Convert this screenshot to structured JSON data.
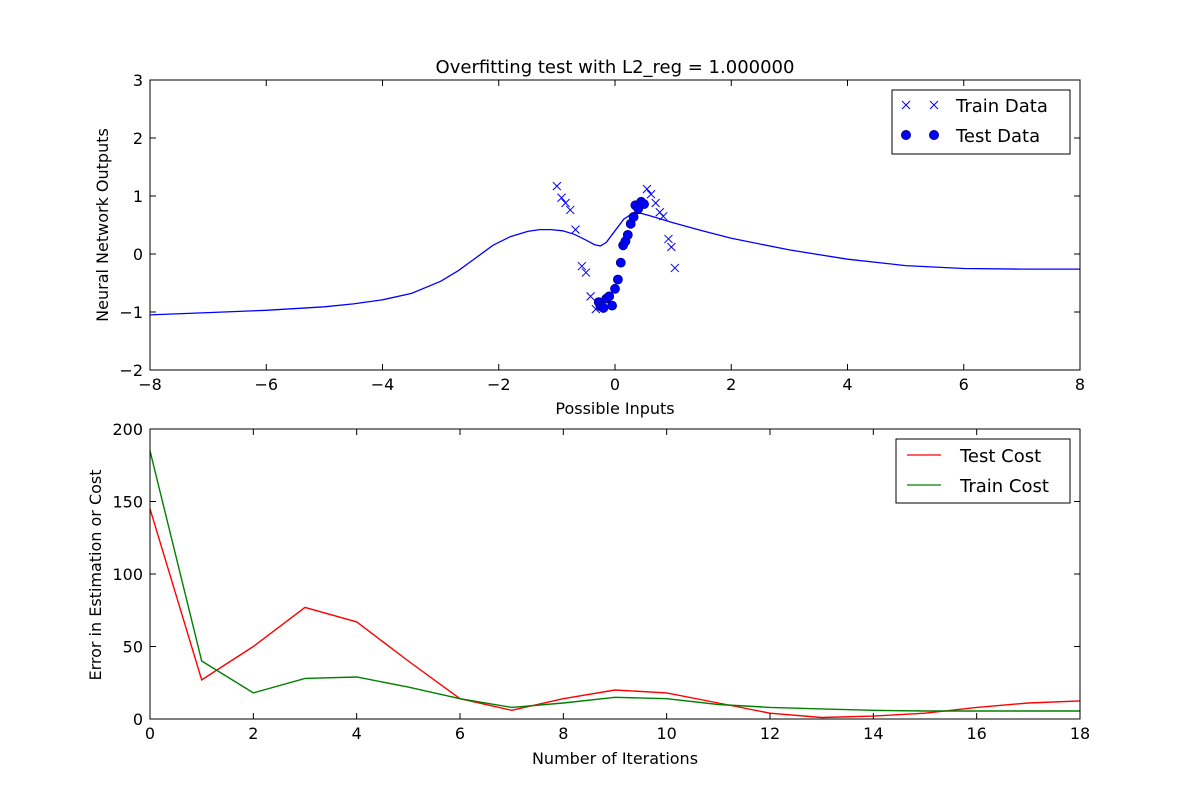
{
  "chart_data": [
    {
      "type": "scatter",
      "title": "Overfitting test with L2_reg = 1.000000",
      "xlabel": "Possible Inputs",
      "ylabel": "Neural Network Outputs",
      "xlim": [
        -8,
        8
      ],
      "ylim": [
        -2,
        3
      ],
      "xticks": [
        -8,
        -6,
        -4,
        -2,
        0,
        2,
        4,
        6,
        8
      ],
      "yticks": [
        -2,
        -1,
        0,
        1,
        2,
        3
      ],
      "xtick_labels": [
        "−8",
        "−6",
        "−4",
        "−2",
        "0",
        "2",
        "4",
        "6",
        "8"
      ],
      "ytick_labels": [
        "−2",
        "−1",
        "0",
        "1",
        "2",
        "3"
      ],
      "grid": false,
      "legend_position": "top-right",
      "legend": [
        {
          "label": "Train Data",
          "marker": "x",
          "color": "#0000ff"
        },
        {
          "label": "Test Data",
          "marker": "o",
          "color": "#0000ff"
        }
      ],
      "series": [
        {
          "name": "Train Data",
          "marker": "x",
          "color": "#0000ff",
          "x": [
            -1.0,
            -0.92,
            -0.85,
            -0.77,
            -0.68,
            -0.57,
            -0.5,
            -0.42,
            -0.33,
            0.55,
            0.62,
            0.7,
            0.77,
            0.83,
            0.92,
            0.97,
            1.03
          ],
          "y": [
            1.17,
            0.97,
            0.88,
            0.76,
            0.42,
            -0.21,
            -0.32,
            -0.73,
            -0.95,
            1.12,
            1.03,
            0.88,
            0.72,
            0.65,
            0.26,
            0.12,
            -0.24
          ]
        },
        {
          "name": "Test Data",
          "marker": "o",
          "color": "#0000ff",
          "x": [
            -0.28,
            -0.25,
            -0.2,
            -0.15,
            -0.1,
            -0.05,
            0.0,
            0.05,
            0.1,
            0.14,
            0.18,
            0.22,
            0.27,
            0.32,
            0.35,
            0.4,
            0.45,
            0.5
          ],
          "y": [
            -0.83,
            -0.9,
            -0.93,
            -0.77,
            -0.73,
            -0.89,
            -0.6,
            -0.44,
            -0.15,
            0.15,
            0.22,
            0.33,
            0.52,
            0.64,
            0.84,
            0.78,
            0.9,
            0.86
          ]
        },
        {
          "name": "",
          "type": "line",
          "color": "#0000ff",
          "x": [
            -8,
            -7,
            -6,
            -5,
            -4.5,
            -4,
            -3.5,
            -3,
            -2.7,
            -2.4,
            -2.1,
            -1.8,
            -1.5,
            -1.3,
            -1.1,
            -0.9,
            -0.7,
            -0.5,
            -0.35,
            -0.25,
            -0.15,
            0.0,
            0.15,
            0.3,
            0.45,
            0.6,
            0.8,
            1.0,
            1.5,
            2,
            3,
            4,
            5,
            6,
            7,
            8
          ],
          "y": [
            -1.05,
            -1.01,
            -0.97,
            -0.91,
            -0.86,
            -0.79,
            -0.68,
            -0.47,
            -0.29,
            -0.07,
            0.15,
            0.3,
            0.39,
            0.42,
            0.42,
            0.4,
            0.34,
            0.24,
            0.16,
            0.14,
            0.2,
            0.4,
            0.6,
            0.7,
            0.7,
            0.66,
            0.6,
            0.54,
            0.4,
            0.27,
            0.07,
            -0.09,
            -0.2,
            -0.25,
            -0.26,
            -0.26
          ]
        }
      ]
    },
    {
      "type": "line",
      "title": "",
      "xlabel": "Number of Iterations",
      "ylabel": "Error in Estimation or Cost",
      "xlim": [
        0,
        18
      ],
      "ylim": [
        0,
        200
      ],
      "xticks": [
        0,
        2,
        4,
        6,
        8,
        10,
        12,
        14,
        16,
        18
      ],
      "yticks": [
        0,
        50,
        100,
        150,
        200
      ],
      "xtick_labels": [
        "0",
        "2",
        "4",
        "6",
        "8",
        "10",
        "12",
        "14",
        "16",
        "18"
      ],
      "ytick_labels": [
        "0",
        "50",
        "100",
        "150",
        "200"
      ],
      "grid": false,
      "legend_position": "top-right",
      "legend": [
        {
          "label": "Test Cost",
          "color": "#ff0000"
        },
        {
          "label": "Train Cost",
          "color": "#008000"
        }
      ],
      "x": [
        0,
        1,
        2,
        3,
        4,
        5,
        6,
        7,
        8,
        9,
        10,
        11,
        12,
        13,
        14,
        15,
        16,
        17,
        18
      ],
      "series": [
        {
          "name": "Test Cost",
          "color": "#ff0000",
          "values": [
            145,
            27,
            50,
            77,
            67,
            40,
            14,
            6,
            14,
            20,
            18,
            11,
            4,
            1,
            2,
            4,
            8,
            11,
            12.5
          ]
        },
        {
          "name": "Train Cost",
          "color": "#008000",
          "values": [
            185,
            40,
            18,
            28,
            29,
            22,
            14,
            8,
            11,
            15,
            14,
            10,
            8,
            7,
            6,
            5.5,
            5.5,
            5.5,
            5.5
          ]
        }
      ]
    }
  ]
}
